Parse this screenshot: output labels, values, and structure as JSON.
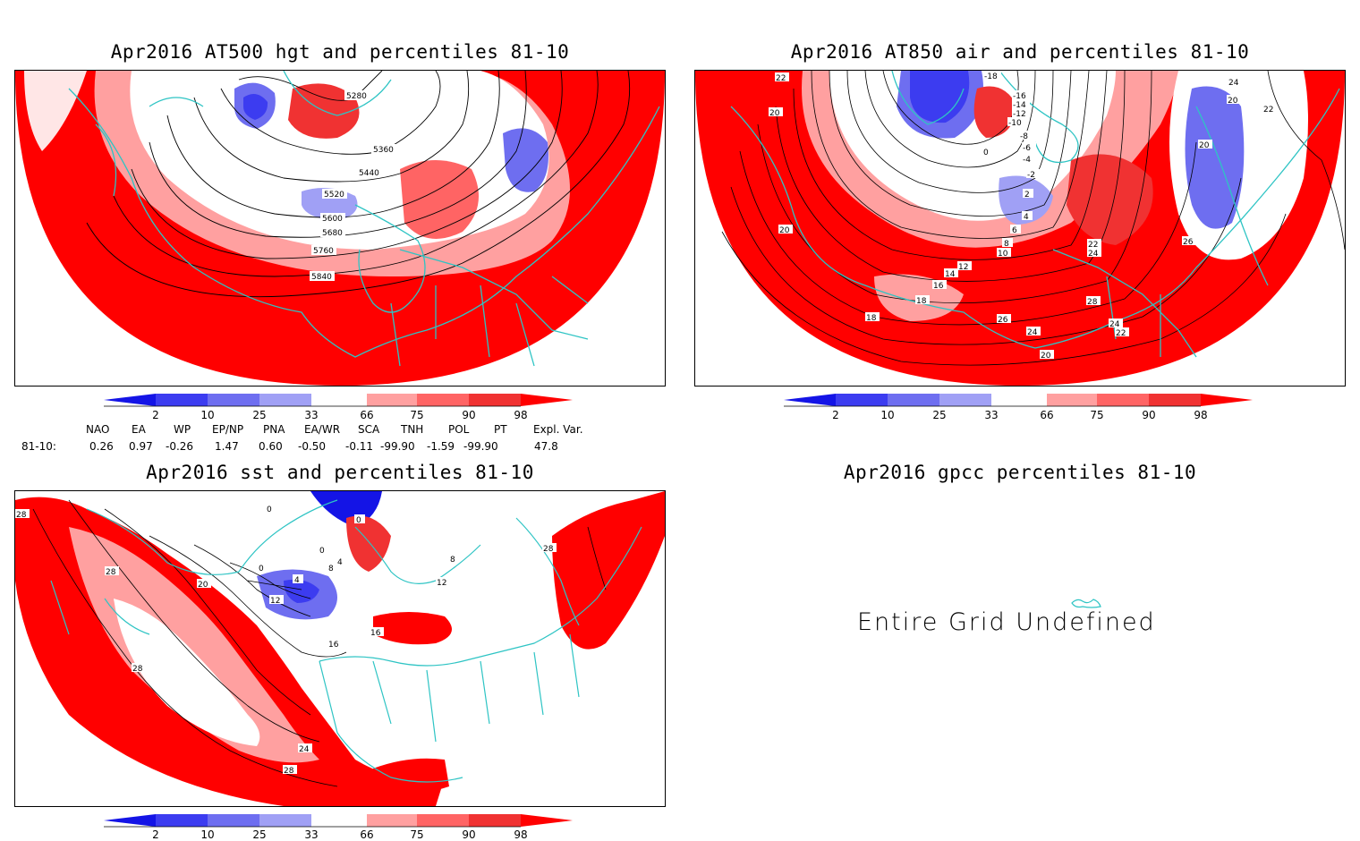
{
  "panels": {
    "hgt": {
      "title": "Apr2016 AT500 hgt and percentiles 81-10",
      "contour_labels": [
        "5280",
        "5360",
        "5440",
        "5520",
        "5600",
        "5680",
        "5760",
        "5840"
      ]
    },
    "air": {
      "title": "Apr2016 AT850 air and percentiles 81-10",
      "contour_labels": [
        "-18",
        "-16",
        "-14",
        "-12",
        "-10",
        "-8",
        "-6",
        "-4",
        "-2",
        "0",
        "2",
        "4",
        "6",
        "8",
        "10",
        "12",
        "14",
        "16",
        "18",
        "20",
        "22",
        "24",
        "26",
        "28"
      ]
    },
    "sst": {
      "title": "Apr2016 sst and percentiles 81-10",
      "contour_labels": [
        "0",
        "4",
        "8",
        "12",
        "16",
        "20",
        "24",
        "28"
      ]
    },
    "gpcc": {
      "title": "Apr2016 gpcc percentiles 81-10",
      "message": "Entire Grid Undefined"
    }
  },
  "colorbar": {
    "ticks": [
      "2",
      "10",
      "25",
      "33",
      "66",
      "75",
      "90",
      "98"
    ],
    "colors": [
      "#1414e6",
      "#3c3cf0",
      "#6e6ef0",
      "#a0a0f5",
      "#ffffff",
      "#ffa0a0",
      "#ff6464",
      "#f03232",
      "#ff0000"
    ]
  },
  "indices": {
    "headers": [
      "NAO",
      "EA",
      "WP",
      "EP/NP",
      "PNA",
      "EA/WR",
      "SCA",
      "TNH",
      "POL",
      "PT",
      "Expl. Var."
    ],
    "row_label": "81-10:",
    "values": [
      "0.26",
      "0.97",
      "-0.26",
      "1.47",
      "0.60",
      "-0.50",
      "-0.11",
      "-99.90",
      "-1.59",
      "-99.90",
      "47.8"
    ]
  },
  "colors": {
    "coast": "#2ec4c4",
    "red_strong": "#ff0000",
    "red_mid": "#f03232",
    "red_light": "#ffa0a0",
    "blue_mid": "#6e6ef0",
    "blue_strong": "#3c3cf0"
  }
}
